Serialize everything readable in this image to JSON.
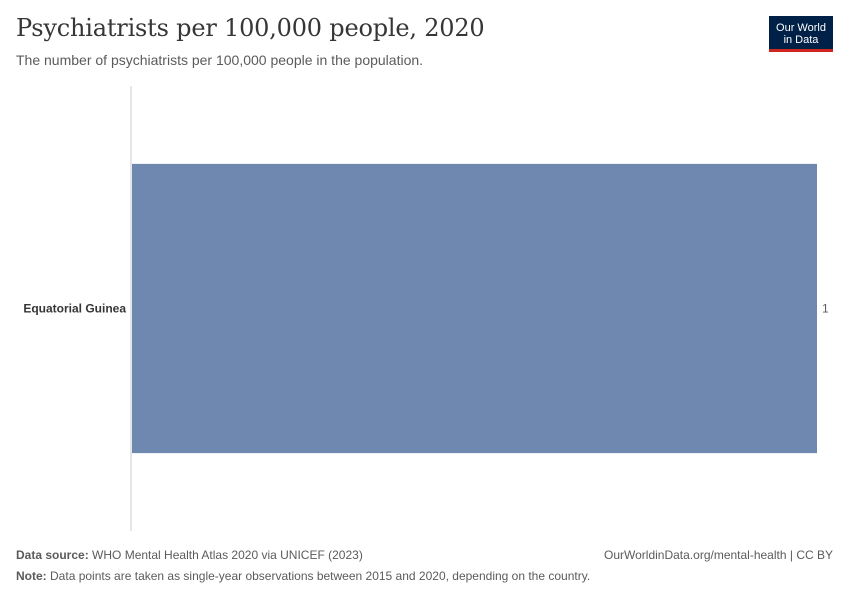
{
  "header": {
    "title": "Psychiatrists per 100,000 people, 2020",
    "subtitle": "The number of psychiatrists per 100,000 people in the population.",
    "logo_line1": "Our World",
    "logo_line2": "in Data"
  },
  "footer": {
    "source_label": "Data source:",
    "source_text": "WHO Mental Health Atlas 2020 via UNICEF (2023)",
    "link": "OurWorldinData.org/mental-health | CC BY",
    "note_label": "Note:",
    "note_text": "Data points are taken as single-year observations between 2015 and 2020, depending on the country."
  },
  "colors": {
    "bar": "#6f88b0",
    "axis": "#cccccc",
    "brand": "#002147",
    "brand_accent": "#ce261e"
  },
  "chart_data": {
    "type": "bar",
    "orientation": "horizontal",
    "categories": [
      "Equatorial Guinea"
    ],
    "values": [
      1
    ],
    "value_labels": [
      "1"
    ],
    "xlim": [
      0,
      1
    ]
  }
}
